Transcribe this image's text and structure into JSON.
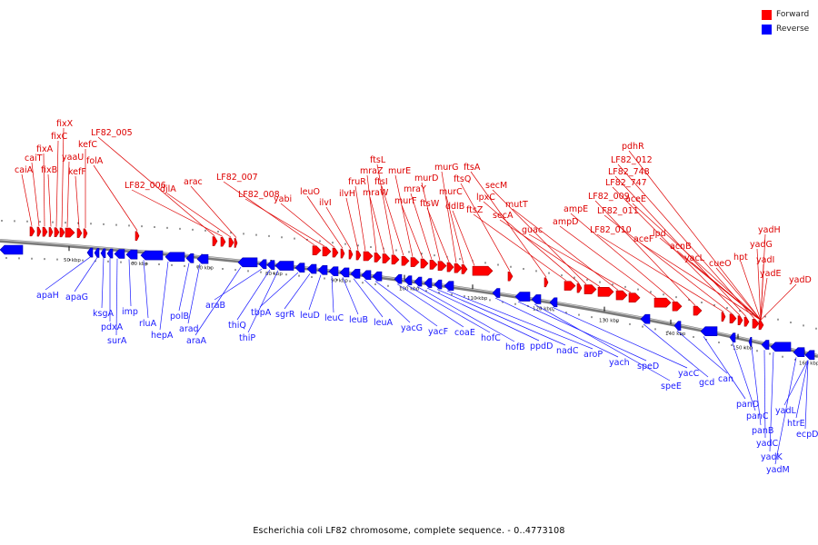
{
  "legend": {
    "forward": {
      "label": "Forward",
      "color": "#ff0000"
    },
    "reverse": {
      "label": "Reverse",
      "color": "#0000ff"
    }
  },
  "caption": "Escherichia coli LF82 chromosome, complete sequence. - 0..4773108",
  "colors": {
    "backbone": "#7a7a7a",
    "forward_label": "#dd0000",
    "reverse_label": "#1a1aff",
    "tick": "#000000"
  },
  "ticks": [
    "50 kbp",
    "60 kbp",
    "70 kbp",
    "80 kbp",
    "90 kbp",
    "100 kbp",
    "110 kbp",
    "120 kbp",
    "130 kbp",
    "140 kbp",
    "150 kbp",
    "160 kbp"
  ],
  "forward_genes": [
    "caiA",
    "caiT",
    "fixA",
    "fixB",
    "fixC",
    "fixX",
    "yaaU",
    "kefF",
    "kefC",
    "folA",
    "LF82_005",
    "LF82_006",
    "djlA",
    "arac",
    "LF82_007",
    "LF82_008",
    "yabi",
    "leuO",
    "ilvI",
    "ilvH",
    "fruR",
    "mraZ",
    "mraW",
    "ftsL",
    "ftsI",
    "murE",
    "murF",
    "mraY",
    "murD",
    "ftsW",
    "murG",
    "murC",
    "ddlB",
    "ftsQ",
    "ftsA",
    "ftsZ",
    "lpxC",
    "secM",
    "secA",
    "mutT",
    "guac",
    "ampD",
    "ampE",
    "LF82_009",
    "LF82_010",
    "LF82_011",
    "LF82_747",
    "LF82_748",
    "LF82_012",
    "pdhR",
    "aceE",
    "aceF",
    "lpd",
    "acnB",
    "yacL",
    "cueO",
    "hpt",
    "yadH",
    "yadG",
    "yadI",
    "yadE",
    "yadD"
  ],
  "reverse_genes": [
    "apaH",
    "apaG",
    "ksgA",
    "pdxA",
    "surA",
    "imp",
    "rluA",
    "hepA",
    "polB",
    "arad",
    "araA",
    "araB",
    "thiQ",
    "thiP",
    "tbpA",
    "sgrR",
    "leuD",
    "leuC",
    "leuB",
    "leuA",
    "yacG",
    "yacF",
    "coaE",
    "hofC",
    "hofB",
    "ppdD",
    "nadC",
    "aroP",
    "yach",
    "speD",
    "speE",
    "yacC",
    "gcd",
    "can",
    "panD",
    "panC",
    "panB",
    "yadC",
    "yadK",
    "yadM",
    "yadL",
    "htrE",
    "ecpD"
  ]
}
